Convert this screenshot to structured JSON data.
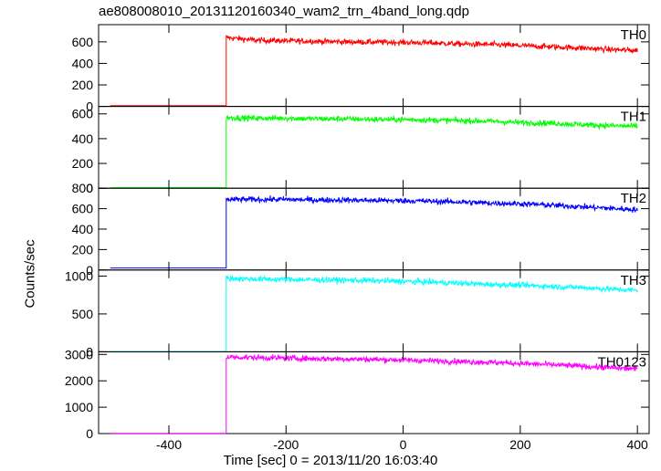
{
  "chart_data": {
    "type": "line",
    "title": "ae808008010_20131120160340_wam2_trn_4band_long.qdp",
    "xlabel": "Time [sec] 0 = 2013/11/20 16:03:40",
    "ylabel": "Counts/sec",
    "xlim": [
      -520,
      420
    ],
    "xticks": [
      -400,
      -200,
      0,
      200,
      400
    ],
    "onset_x": -302,
    "grid": false,
    "panels": [
      {
        "name": "TH0",
        "color": "#ff0000",
        "ylim": [
          0,
          760
        ],
        "yticks": [
          0,
          200,
          400,
          600
        ],
        "pre_level": 8,
        "x": [
          -302,
          -250,
          -200,
          -150,
          -100,
          -50,
          0,
          50,
          100,
          150,
          200,
          250,
          300,
          350,
          400
        ],
        "y": [
          640,
          615,
          610,
          605,
          600,
          598,
          595,
          590,
          580,
          575,
          565,
          555,
          545,
          530,
          520
        ]
      },
      {
        "name": "TH1",
        "color": "#00ff00",
        "ylim": [
          0,
          660
        ],
        "yticks": [
          0,
          200,
          400,
          600
        ],
        "pre_level": 5,
        "x": [
          -302,
          -250,
          -200,
          -150,
          -100,
          -50,
          0,
          50,
          100,
          150,
          200,
          250,
          300,
          350,
          400
        ],
        "y": [
          570,
          565,
          565,
          560,
          560,
          555,
          555,
          550,
          545,
          540,
          530,
          525,
          515,
          505,
          500
        ]
      },
      {
        "name": "TH2",
        "color": "#0000ff",
        "ylim": [
          0,
          800
        ],
        "yticks": [
          0,
          200,
          400,
          600,
          800
        ],
        "pre_level": 20,
        "x": [
          -302,
          -250,
          -200,
          -150,
          -100,
          -50,
          0,
          50,
          100,
          150,
          200,
          250,
          300,
          350,
          400
        ],
        "y": [
          690,
          690,
          690,
          685,
          685,
          680,
          678,
          672,
          665,
          655,
          648,
          635,
          620,
          605,
          590
        ]
      },
      {
        "name": "TH3",
        "color": "#00ffff",
        "ylim": [
          0,
          1080
        ],
        "yticks": [
          0,
          500,
          1000
        ],
        "pre_level": 5,
        "x": [
          -302,
          -250,
          -200,
          -150,
          -100,
          -50,
          0,
          50,
          100,
          150,
          200,
          250,
          300,
          350,
          400
        ],
        "y": [
          970,
          960,
          955,
          950,
          945,
          940,
          930,
          920,
          905,
          890,
          880,
          865,
          850,
          830,
          810
        ]
      },
      {
        "name": "TH0123",
        "color": "#ff00ff",
        "ylim": [
          0,
          3100
        ],
        "yticks": [
          0,
          1000,
          2000,
          3000
        ],
        "pre_level": 10,
        "x": [
          -302,
          -250,
          -200,
          -150,
          -100,
          -50,
          0,
          50,
          100,
          150,
          200,
          250,
          300,
          350,
          400
        ],
        "y": [
          2900,
          2880,
          2860,
          2840,
          2830,
          2810,
          2790,
          2760,
          2730,
          2700,
          2660,
          2610,
          2560,
          2500,
          2450
        ]
      }
    ]
  }
}
